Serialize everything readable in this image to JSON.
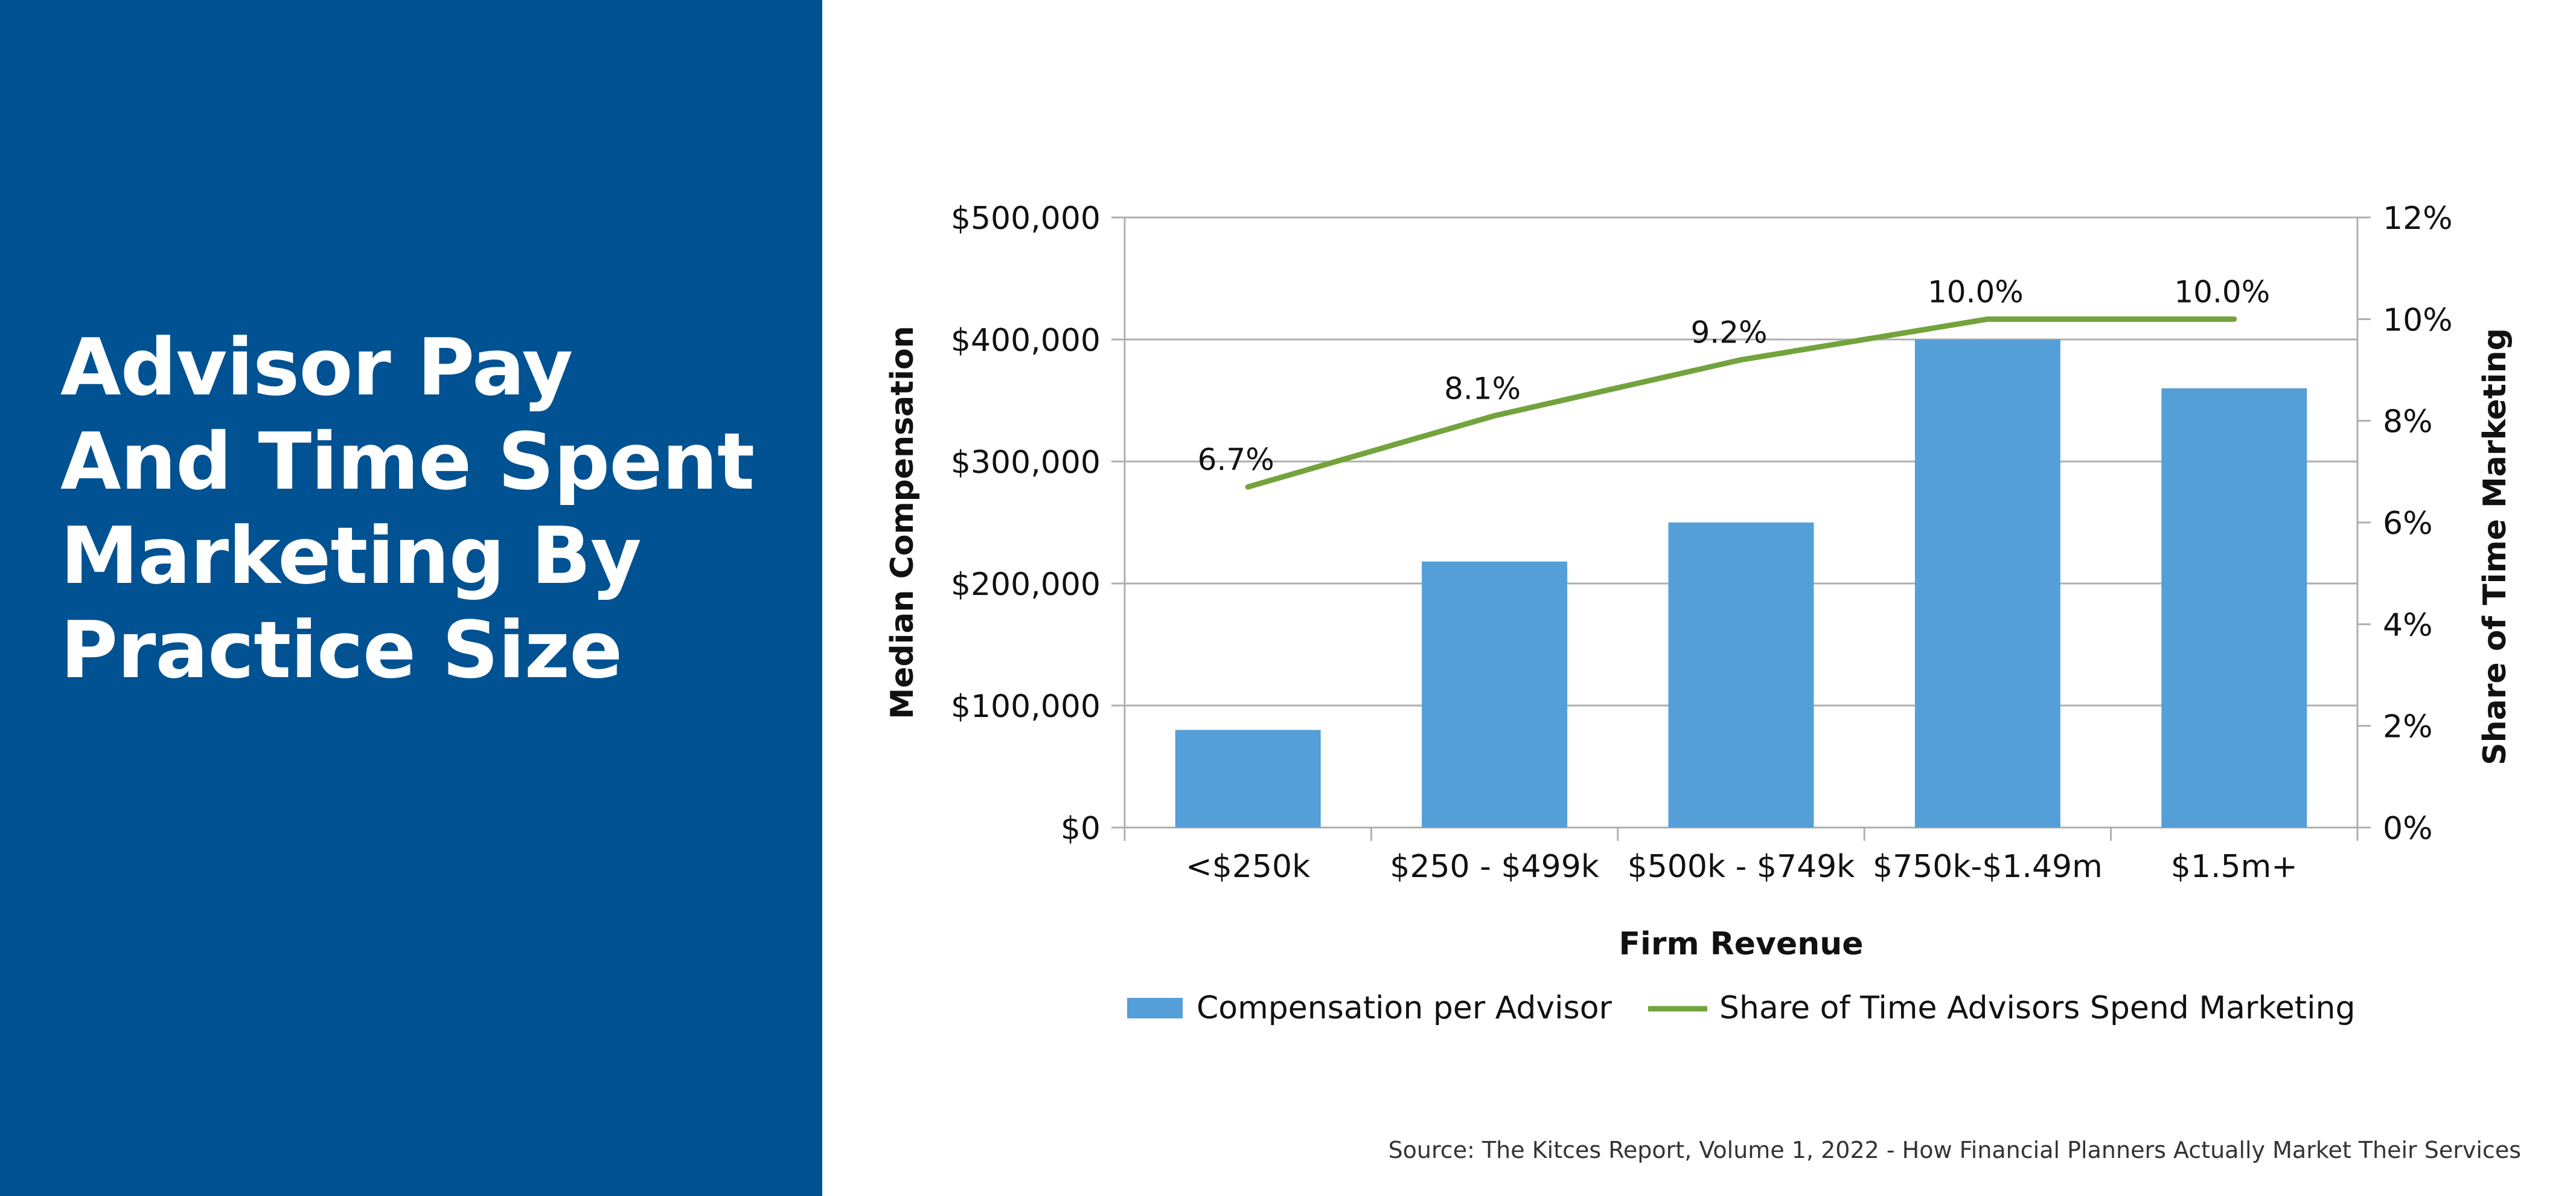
{
  "title_lines": [
    "Advisor Pay",
    "And Time Spent",
    "Marketing By",
    "Practice Size"
  ],
  "source": "Source: The Kitces Report, Volume 1, 2022 - How Financial Planners Actually Market Their Services",
  "colors": {
    "panel": "#015292",
    "bar": "#559FD8",
    "line": "#73A33C",
    "grid": "#AFAFAF",
    "text": "#111111"
  },
  "chart_data": {
    "type": "bar",
    "title": "",
    "xlabel": "Firm Revenue",
    "ylabel": "Median Compensation",
    "y2label": "Share of Time Marketing",
    "categories": [
      "<$250k",
      "$250 - $499k",
      "$500k - $749k",
      "$750k-$1.49m",
      "$1.5m+"
    ],
    "series": [
      {
        "name": "Compensation per Advisor",
        "type": "bar",
        "axis": "left",
        "values": [
          80000,
          218000,
          250000,
          400000,
          360000
        ]
      },
      {
        "name": "Share of Time Advisors Spend Marketing",
        "type": "line",
        "axis": "right",
        "values": [
          6.7,
          8.1,
          9.2,
          10.0,
          10.0
        ],
        "labels": [
          "6.7%",
          "8.1%",
          "9.2%",
          "10.0%",
          "10.0%"
        ]
      }
    ],
    "ylim": [
      0,
      500000
    ],
    "y2lim": [
      0,
      12
    ],
    "yticks": [
      "$0",
      "$100,000",
      "$200,000",
      "$300,000",
      "$400,000",
      "$500,000"
    ],
    "y2ticks": [
      "0%",
      "2%",
      "4%",
      "6%",
      "8%",
      "10%",
      "12%"
    ],
    "grid": true,
    "legend": "bottom"
  }
}
